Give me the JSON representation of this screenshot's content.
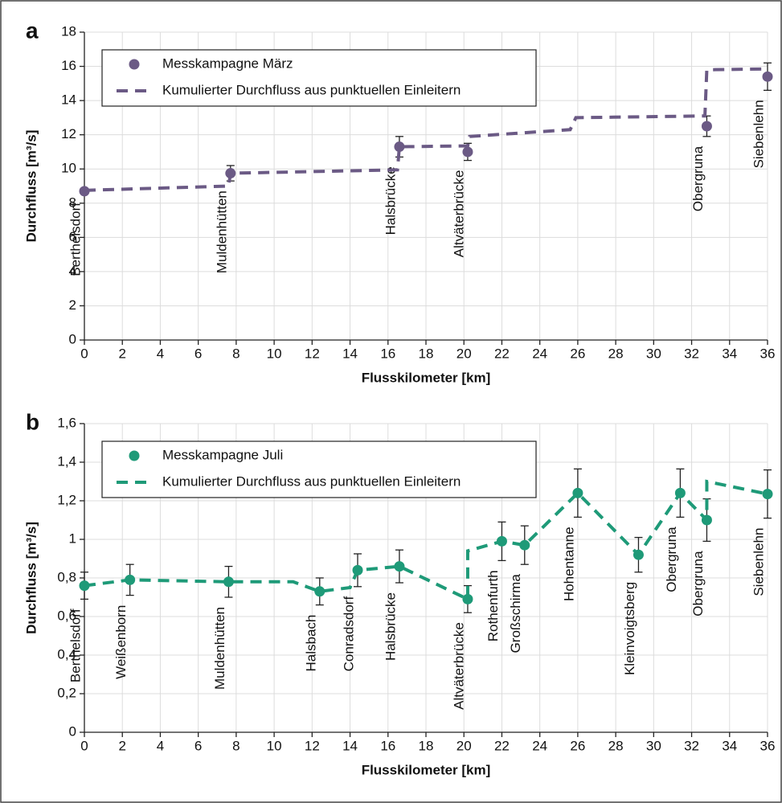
{
  "chart_data": [
    {
      "type": "scatter",
      "panel_label": "a",
      "x_label": "Flusskilometer [km]",
      "y_label": "Durchfluss [m³/s]",
      "xlim": [
        0,
        36
      ],
      "xticks": [
        0,
        2,
        4,
        6,
        8,
        10,
        12,
        14,
        16,
        18,
        20,
        22,
        24,
        26,
        28,
        30,
        32,
        34,
        36
      ],
      "ylim": [
        0,
        18
      ],
      "yticks": [
        0,
        2,
        4,
        6,
        8,
        10,
        12,
        14,
        16,
        18
      ],
      "grid": true,
      "legend": "upper left",
      "series": [
        {
          "type": "scatter",
          "name": "Messkampagne März",
          "color": "#6b5a85",
          "x": [
            0,
            7.7,
            16.6,
            20.2,
            32.8,
            36
          ],
          "values": [
            8.7,
            9.75,
            11.3,
            11.0,
            12.5,
            15.4
          ],
          "errors": [
            0.1,
            0.45,
            0.6,
            0.5,
            0.6,
            0.8
          ],
          "point_labels": [
            "Berthelsdorf",
            "Muldenhütten",
            "Halsbrücke",
            "Altväterbrücke",
            "Obergruna",
            "Siebenlehn"
          ]
        },
        {
          "type": "line",
          "name": "Kumulierter Durchfluss aus punktuellen Einleitern",
          "color": "#6b5a85",
          "x": [
            0,
            7.6,
            7.7,
            16.5,
            16.6,
            20.2,
            20.3,
            25.6,
            25.9,
            32.7,
            32.8,
            36
          ],
          "values": [
            8.75,
            9.0,
            9.75,
            9.95,
            11.3,
            11.35,
            11.9,
            12.3,
            13.0,
            13.1,
            15.8,
            15.85
          ]
        }
      ]
    },
    {
      "type": "scatter",
      "panel_label": "b",
      "x_label": "Flusskilometer [km]",
      "y_label": "Durchfluss [m³/s]",
      "xlim": [
        0,
        36
      ],
      "xticks": [
        0,
        2,
        4,
        6,
        8,
        10,
        12,
        14,
        16,
        18,
        20,
        22,
        24,
        26,
        28,
        30,
        32,
        34,
        36
      ],
      "ylim": [
        0,
        1.6
      ],
      "yticks": [
        0,
        {
          "value": 0.2,
          "label": "0,2"
        },
        {
          "value": 0.4,
          "label": "0,4"
        },
        {
          "value": 0.6,
          "label": "0,6"
        },
        {
          "value": 0.8,
          "label": "0,8"
        },
        1,
        {
          "value": 1.2,
          "label": "1,2"
        },
        {
          "value": 1.4,
          "label": "1,4"
        },
        {
          "value": 1.6,
          "label": "1,6"
        }
      ],
      "grid": true,
      "legend": "upper left",
      "series": [
        {
          "type": "scatter",
          "name": "Messkampagne Juli",
          "color": "#1e9a78",
          "x": [
            0,
            2.4,
            7.6,
            12.4,
            14.4,
            16.6,
            20.2,
            22,
            23.2,
            26,
            29.2,
            31.4,
            32.8,
            36
          ],
          "values": [
            0.76,
            0.79,
            0.78,
            0.73,
            0.84,
            0.86,
            0.69,
            0.99,
            0.97,
            1.24,
            0.92,
            1.24,
            1.1,
            1.235
          ],
          "errors": [
            0.07,
            0.08,
            0.08,
            0.07,
            0.085,
            0.085,
            0.07,
            0.1,
            0.1,
            0.125,
            0.09,
            0.125,
            0.11,
            0.125
          ],
          "point_labels": [
            "Berthelsdorf",
            "Weißenborn",
            "Muldenhütten",
            "Halsbach",
            "Conradsdorf",
            "Halsbrücke",
            "Altväterbrücke",
            "Rothenfurth",
            "Großschirma",
            "Hohentanne",
            "Kleinvoigtsberg",
            "Obergruna",
            "Obergruna",
            "Siebenlehn"
          ]
        },
        {
          "type": "line",
          "name": "Kumulierter Durchfluss aus punktuellen Einleitern",
          "color": "#1e9a78",
          "x": [
            0,
            2.4,
            7.6,
            11,
            12.4,
            14.0,
            14.4,
            16.6,
            20.2,
            20.2,
            22,
            23.2,
            26,
            29.2,
            31.4,
            32.8,
            32.8,
            36
          ],
          "values": [
            0.76,
            0.79,
            0.78,
            0.78,
            0.73,
            0.75,
            0.84,
            0.86,
            0.69,
            0.94,
            0.99,
            0.97,
            1.24,
            0.92,
            1.24,
            1.1,
            1.3,
            1.235
          ]
        }
      ]
    }
  ]
}
